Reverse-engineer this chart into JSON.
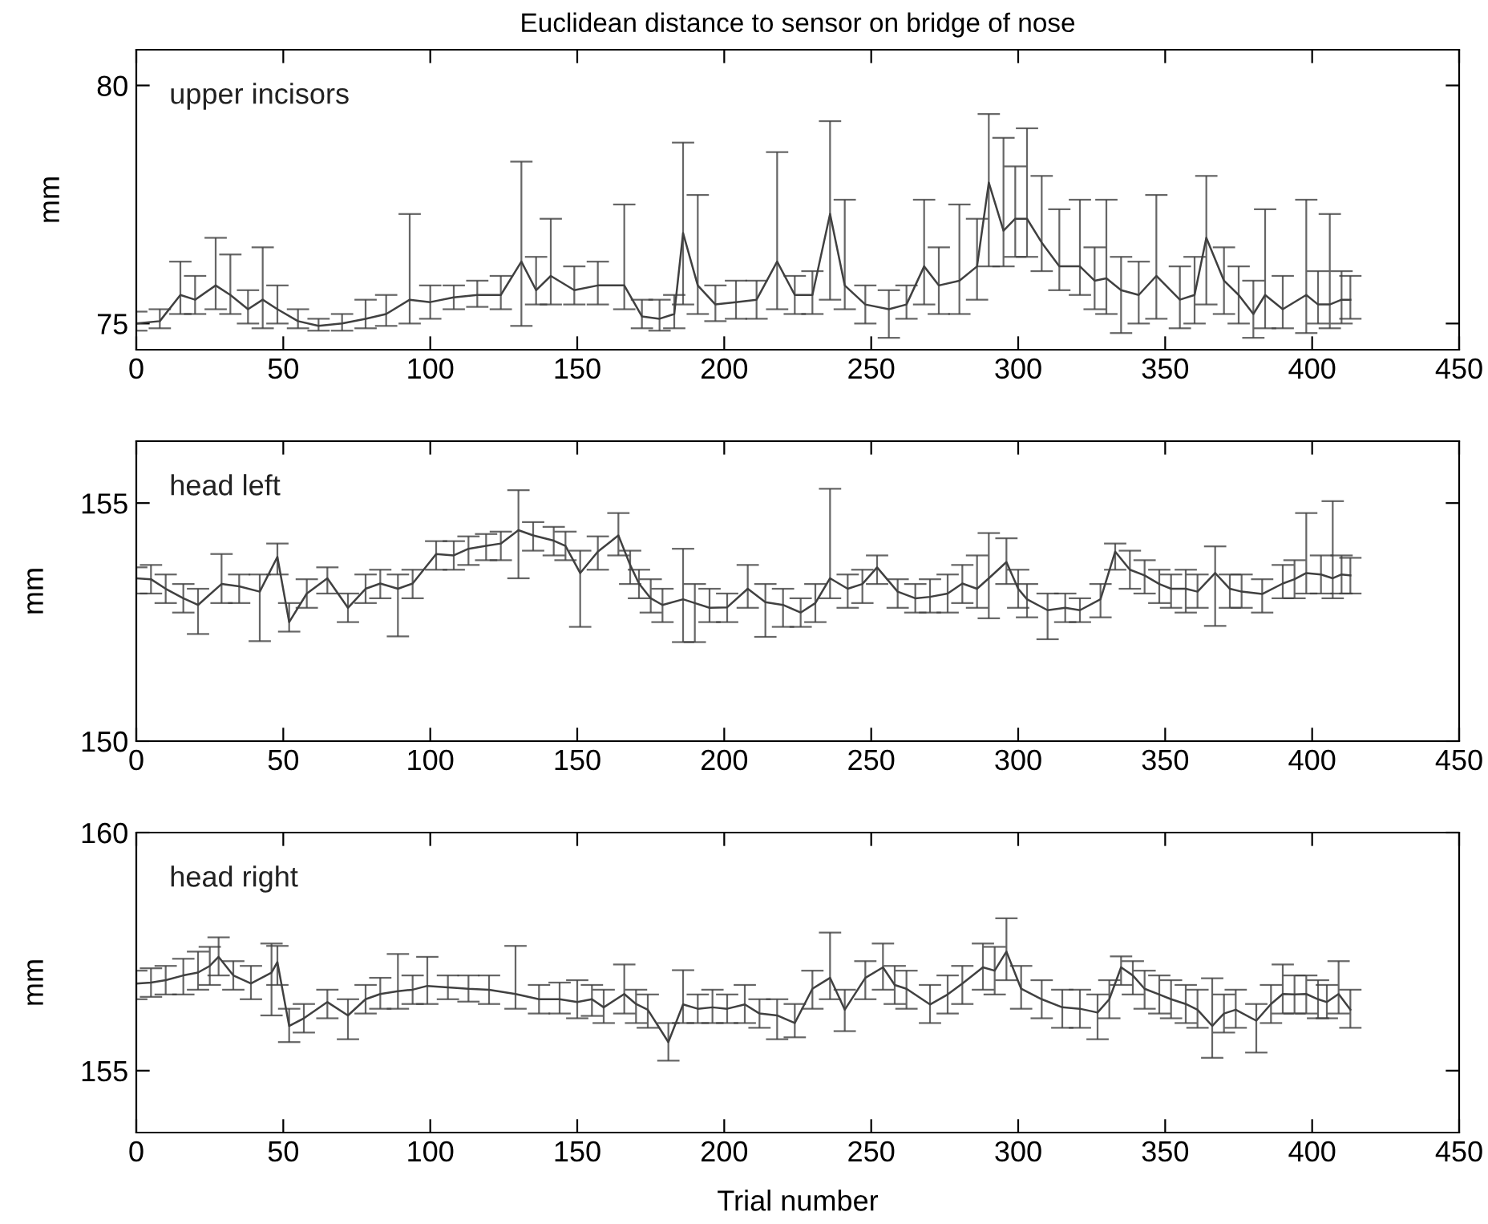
{
  "chart_data": [
    {
      "type": "line",
      "title": "Euclidean distance to sensor on bridge of nose",
      "ylabel": "mm",
      "annotations": [
        "upper incisors"
      ],
      "xlim": [
        0,
        450
      ],
      "ylim": [
        74.45,
        80.75
      ],
      "xticks": [
        0,
        50,
        100,
        150,
        200,
        250,
        300,
        350,
        400,
        450
      ],
      "yticks": [
        75,
        80
      ],
      "grid": false,
      "marker": "none",
      "line_style": "solid",
      "x": [
        0,
        8,
        15,
        20,
        27,
        32,
        38,
        43,
        48,
        55,
        62,
        70,
        78,
        85,
        93,
        100,
        108,
        116,
        124,
        131,
        136,
        141,
        149,
        157,
        166,
        172,
        178,
        183,
        186,
        191,
        197,
        204,
        211,
        218,
        224,
        230,
        236,
        241,
        248,
        256,
        262,
        268,
        273,
        280,
        286,
        290,
        295,
        299,
        303,
        308,
        314,
        321,
        326,
        330,
        335,
        341,
        347,
        355,
        360,
        364,
        370,
        375,
        380,
        384,
        390,
        398,
        402,
        406,
        410,
        413
      ],
      "series": [
        {
          "color": "#404040",
          "values": [
            75.0,
            75.05,
            75.6,
            75.5,
            75.8,
            75.6,
            75.3,
            75.5,
            75.3,
            75.05,
            74.95,
            75.0,
            75.1,
            75.2,
            75.5,
            75.45,
            75.55,
            75.6,
            75.6,
            76.3,
            75.7,
            76.0,
            75.7,
            75.8,
            75.8,
            75.15,
            75.1,
            75.2,
            76.9,
            75.8,
            75.4,
            75.45,
            75.5,
            76.3,
            75.6,
            75.6,
            77.3,
            75.8,
            75.4,
            75.3,
            75.4,
            76.2,
            75.8,
            75.9,
            76.2,
            77.96,
            76.95,
            77.2,
            77.2,
            76.7,
            76.2,
            76.2,
            75.9,
            75.95,
            75.7,
            75.6,
            76.0,
            75.5,
            75.6,
            76.8,
            75.9,
            75.6,
            75.2,
            75.6,
            75.3,
            75.6,
            75.4,
            75.4,
            75.5,
            75.5
          ],
          "errors": [
            [
              74.85,
              75.25
            ],
            [
              74.9,
              75.3
            ],
            [
              75.2,
              76.3
            ],
            [
              75.2,
              76.0
            ],
            [
              75.3,
              76.8
            ],
            [
              75.2,
              76.45
            ],
            [
              75.0,
              75.7
            ],
            [
              74.9,
              76.6
            ],
            [
              75.0,
              75.8
            ],
            [
              74.9,
              75.3
            ],
            [
              74.85,
              75.1
            ],
            [
              74.85,
              75.2
            ],
            [
              74.9,
              75.5
            ],
            [
              74.95,
              75.6
            ],
            [
              75.0,
              77.3
            ],
            [
              75.1,
              75.8
            ],
            [
              75.3,
              75.8
            ],
            [
              75.35,
              75.9
            ],
            [
              75.3,
              76.0
            ],
            [
              74.95,
              78.4
            ],
            [
              75.4,
              76.4
            ],
            [
              75.4,
              77.2
            ],
            [
              75.4,
              76.2
            ],
            [
              75.4,
              76.3
            ],
            [
              75.3,
              77.5
            ],
            [
              74.9,
              75.5
            ],
            [
              74.85,
              75.5
            ],
            [
              74.9,
              75.6
            ],
            [
              75.4,
              78.8
            ],
            [
              75.2,
              77.7
            ],
            [
              75.05,
              75.8
            ],
            [
              75.1,
              75.9
            ],
            [
              75.1,
              75.9
            ],
            [
              75.3,
              78.6
            ],
            [
              75.2,
              76.0
            ],
            [
              75.2,
              76.1
            ],
            [
              75.5,
              79.25
            ],
            [
              75.3,
              77.6
            ],
            [
              75.0,
              75.8
            ],
            [
              74.7,
              75.7
            ],
            [
              75.1,
              75.8
            ],
            [
              75.4,
              77.6
            ],
            [
              75.2,
              76.6
            ],
            [
              75.2,
              77.5
            ],
            [
              75.5,
              77.2
            ],
            [
              76.2,
              79.4
            ],
            [
              76.2,
              78.9
            ],
            [
              76.4,
              78.3
            ],
            [
              76.4,
              79.1
            ],
            [
              76.1,
              78.1
            ],
            [
              75.7,
              77.4
            ],
            [
              75.6,
              77.6
            ],
            [
              75.3,
              76.6
            ],
            [
              75.2,
              77.6
            ],
            [
              74.8,
              76.4
            ],
            [
              75.0,
              76.3
            ],
            [
              75.1,
              77.7
            ],
            [
              74.9,
              76.2
            ],
            [
              75.0,
              76.4
            ],
            [
              75.4,
              78.1
            ],
            [
              75.2,
              76.6
            ],
            [
              75.0,
              76.2
            ],
            [
              74.7,
              75.9
            ],
            [
              74.9,
              77.4
            ],
            [
              74.9,
              76.0
            ],
            [
              74.8,
              77.6
            ],
            [
              75.0,
              76.1
            ],
            [
              74.9,
              77.3
            ],
            [
              75.0,
              76.1
            ],
            [
              75.1,
              76.0
            ]
          ]
        }
      ]
    },
    {
      "type": "line",
      "ylabel": "mm",
      "annotations": [
        "head left"
      ],
      "xlim": [
        0,
        450
      ],
      "ylim": [
        150,
        156.3
      ],
      "xticks": [
        0,
        50,
        100,
        150,
        200,
        250,
        300,
        350,
        400,
        450
      ],
      "yticks": [
        150,
        155
      ],
      "grid": false,
      "marker": "none",
      "line_style": "solid",
      "x": [
        0,
        5,
        10,
        16,
        21,
        29,
        35,
        42,
        48,
        52,
        58,
        65,
        72,
        78,
        83,
        89,
        94,
        102,
        108,
        113,
        119,
        124,
        130,
        135,
        142,
        146,
        151,
        157,
        164,
        168,
        171,
        175,
        179,
        186,
        190,
        195,
        201,
        208,
        214,
        220,
        226,
        231,
        236,
        242,
        247,
        252,
        259,
        265,
        270,
        276,
        281,
        286,
        290,
        296,
        300,
        303,
        310,
        316,
        321,
        328,
        333,
        338,
        343,
        348,
        352,
        357,
        361,
        367,
        372,
        376,
        383,
        390,
        394,
        398,
        403,
        407,
        410,
        413
      ],
      "series": [
        {
          "color": "#404040",
          "values": [
            153.42,
            153.4,
            153.2,
            153.0,
            152.86,
            153.3,
            153.25,
            153.14,
            153.87,
            152.5,
            153.1,
            153.42,
            152.8,
            153.2,
            153.31,
            153.2,
            153.31,
            153.93,
            153.9,
            154.04,
            154.1,
            154.15,
            154.43,
            154.32,
            154.21,
            154.1,
            153.53,
            153.98,
            154.32,
            153.7,
            153.31,
            153.0,
            152.86,
            152.98,
            152.9,
            152.8,
            152.81,
            153.2,
            152.92,
            152.86,
            152.7,
            152.9,
            153.42,
            153.2,
            153.3,
            153.65,
            153.14,
            153.0,
            153.03,
            153.1,
            153.31,
            153.2,
            153.42,
            153.76,
            153.2,
            152.98,
            152.75,
            152.8,
            152.75,
            152.98,
            153.98,
            153.6,
            153.48,
            153.3,
            153.2,
            153.2,
            153.14,
            153.53,
            153.2,
            153.14,
            153.09,
            153.31,
            153.4,
            153.53,
            153.5,
            153.42,
            153.5,
            153.48
          ],
          "errors": [
            [
              153.1,
              153.65
            ],
            [
              153.1,
              153.7
            ],
            [
              152.9,
              153.5
            ],
            [
              152.7,
              153.3
            ],
            [
              152.25,
              153.2
            ],
            [
              152.9,
              153.93
            ],
            [
              152.9,
              153.5
            ],
            [
              152.1,
              153.5
            ],
            [
              153.5,
              154.15
            ],
            [
              152.3,
              152.9
            ],
            [
              152.8,
              153.4
            ],
            [
              153.1,
              153.65
            ],
            [
              152.5,
              153.1
            ],
            [
              152.9,
              153.5
            ],
            [
              153.0,
              153.6
            ],
            [
              152.2,
              153.5
            ],
            [
              153.0,
              153.6
            ],
            [
              153.6,
              154.2
            ],
            [
              153.6,
              154.2
            ],
            [
              153.7,
              154.3
            ],
            [
              153.8,
              154.35
            ],
            [
              153.8,
              154.4
            ],
            [
              153.42,
              155.27
            ],
            [
              154.0,
              154.6
            ],
            [
              153.9,
              154.5
            ],
            [
              153.8,
              154.4
            ],
            [
              152.4,
              154.0
            ],
            [
              153.6,
              154.3
            ],
            [
              153.9,
              154.79
            ],
            [
              153.3,
              154.0
            ],
            [
              153.0,
              153.6
            ],
            [
              152.7,
              153.4
            ],
            [
              152.5,
              153.2
            ],
            [
              152.08,
              154.04
            ],
            [
              152.08,
              153.3
            ],
            [
              152.5,
              153.2
            ],
            [
              152.5,
              153.1
            ],
            [
              152.8,
              153.7
            ],
            [
              152.19,
              153.3
            ],
            [
              152.4,
              153.2
            ],
            [
              152.4,
              153.0
            ],
            [
              152.5,
              153.3
            ],
            [
              153.0,
              155.3
            ],
            [
              152.8,
              153.5
            ],
            [
              152.9,
              153.6
            ],
            [
              153.3,
              153.9
            ],
            [
              152.8,
              153.4
            ],
            [
              152.7,
              153.3
            ],
            [
              152.7,
              153.4
            ],
            [
              152.7,
              153.5
            ],
            [
              152.9,
              153.7
            ],
            [
              152.8,
              153.9
            ],
            [
              152.58,
              154.37
            ],
            [
              153.3,
              154.26
            ],
            [
              152.8,
              153.6
            ],
            [
              152.6,
              153.3
            ],
            [
              152.14,
              153.1
            ],
            [
              152.5,
              153.1
            ],
            [
              152.5,
              153.0
            ],
            [
              152.6,
              153.3
            ],
            [
              153.6,
              154.15
            ],
            [
              153.2,
              154.0
            ],
            [
              153.1,
              153.8
            ],
            [
              152.9,
              153.6
            ],
            [
              152.8,
              153.5
            ],
            [
              152.7,
              153.6
            ],
            [
              152.8,
              153.5
            ],
            [
              152.42,
              154.09
            ],
            [
              152.8,
              153.5
            ],
            [
              152.8,
              153.5
            ],
            [
              152.7,
              153.4
            ],
            [
              153.0,
              153.7
            ],
            [
              153.0,
              153.8
            ],
            [
              153.1,
              154.79
            ],
            [
              153.1,
              153.9
            ],
            [
              153.0,
              155.04
            ],
            [
              153.1,
              153.9
            ],
            [
              153.1,
              153.85
            ]
          ]
        }
      ]
    },
    {
      "type": "line",
      "xlabel": "Trial number",
      "ylabel": "mm",
      "annotations": [
        "head right"
      ],
      "xlim": [
        0,
        450
      ],
      "ylim": [
        153.7,
        160
      ],
      "xticks": [
        0,
        50,
        100,
        150,
        200,
        250,
        300,
        350,
        400,
        450
      ],
      "yticks": [
        155,
        160
      ],
      "grid": false,
      "marker": "none",
      "line_style": "solid",
      "x": [
        0,
        5,
        10,
        16,
        21,
        25,
        28,
        33,
        39,
        46,
        48,
        52,
        57,
        65,
        72,
        78,
        83,
        89,
        94,
        99,
        106,
        113,
        120,
        129,
        137,
        144,
        150,
        155,
        159,
        166,
        170,
        174,
        181,
        186,
        191,
        196,
        201,
        207,
        212,
        218,
        224,
        230,
        236,
        241,
        248,
        254,
        258,
        262,
        270,
        276,
        281,
        288,
        292,
        296,
        301,
        308,
        315,
        321,
        327,
        331,
        335,
        339,
        343,
        348,
        352,
        357,
        361,
        366,
        370,
        374,
        381,
        386,
        390,
        394,
        398,
        402,
        405,
        409,
        413
      ],
      "series": [
        {
          "color": "#404040",
          "values": [
            156.83,
            156.85,
            156.9,
            157.0,
            157.06,
            157.2,
            157.39,
            157.0,
            156.83,
            157.06,
            157.28,
            155.94,
            156.1,
            156.44,
            156.16,
            156.5,
            156.61,
            156.67,
            156.7,
            156.78,
            156.75,
            156.72,
            156.7,
            156.61,
            156.5,
            156.5,
            156.44,
            156.5,
            156.33,
            156.61,
            156.4,
            156.28,
            155.6,
            156.39,
            156.3,
            156.33,
            156.3,
            156.39,
            156.2,
            156.16,
            156.0,
            156.72,
            156.95,
            156.28,
            156.95,
            157.17,
            156.8,
            156.72,
            156.39,
            156.6,
            156.83,
            157.17,
            157.1,
            157.5,
            156.72,
            156.5,
            156.33,
            156.3,
            156.22,
            156.5,
            157.17,
            157.0,
            156.72,
            156.6,
            156.5,
            156.4,
            156.28,
            155.94,
            156.2,
            156.28,
            156.05,
            156.4,
            156.61,
            156.6,
            156.61,
            156.5,
            156.44,
            156.61,
            156.28
          ],
          "errors": [
            [
              156.5,
              157.1
            ],
            [
              156.55,
              157.15
            ],
            [
              156.6,
              157.2
            ],
            [
              156.6,
              157.35
            ],
            [
              156.7,
              157.5
            ],
            [
              156.8,
              157.6
            ],
            [
              157.0,
              157.8
            ],
            [
              156.7,
              157.3
            ],
            [
              156.5,
              157.2
            ],
            [
              156.16,
              157.67
            ],
            [
              156.8,
              157.62
            ],
            [
              155.6,
              156.3
            ],
            [
              155.8,
              156.4
            ],
            [
              156.1,
              156.7
            ],
            [
              155.66,
              156.5
            ],
            [
              156.2,
              156.8
            ],
            [
              156.3,
              156.95
            ],
            [
              156.3,
              157.45
            ],
            [
              156.4,
              157.0
            ],
            [
              156.4,
              157.39
            ],
            [
              156.5,
              157.0
            ],
            [
              156.45,
              157.0
            ],
            [
              156.4,
              157.0
            ],
            [
              156.3,
              157.62
            ],
            [
              156.2,
              156.8
            ],
            [
              156.2,
              156.85
            ],
            [
              156.1,
              156.9
            ],
            [
              156.15,
              156.8
            ],
            [
              156.0,
              156.7
            ],
            [
              156.2,
              157.23
            ],
            [
              156.0,
              156.7
            ],
            [
              155.9,
              156.6
            ],
            [
              155.21,
              156.0
            ],
            [
              156.0,
              157.11
            ],
            [
              156.0,
              156.6
            ],
            [
              156.0,
              156.7
            ],
            [
              156.0,
              156.6
            ],
            [
              156.0,
              156.8
            ],
            [
              155.9,
              156.5
            ],
            [
              155.66,
              156.5
            ],
            [
              155.7,
              156.4
            ],
            [
              156.3,
              157.1
            ],
            [
              156.5,
              157.9
            ],
            [
              155.83,
              156.7
            ],
            [
              156.5,
              157.3
            ],
            [
              156.7,
              157.67
            ],
            [
              156.4,
              157.2
            ],
            [
              156.3,
              157.1
            ],
            [
              156.0,
              156.8
            ],
            [
              156.2,
              157.0
            ],
            [
              156.4,
              157.2
            ],
            [
              156.7,
              157.67
            ],
            [
              156.6,
              157.6
            ],
            [
              156.9,
              158.2
            ],
            [
              156.3,
              157.2
            ],
            [
              156.1,
              156.9
            ],
            [
              155.9,
              156.7
            ],
            [
              155.9,
              156.7
            ],
            [
              155.66,
              156.6
            ],
            [
              156.1,
              156.9
            ],
            [
              156.8,
              157.4
            ],
            [
              156.6,
              157.3
            ],
            [
              156.3,
              157.1
            ],
            [
              156.2,
              157.0
            ],
            [
              156.1,
              156.9
            ],
            [
              156.0,
              156.8
            ],
            [
              155.9,
              156.7
            ],
            [
              155.27,
              156.94
            ],
            [
              155.8,
              156.6
            ],
            [
              155.9,
              156.7
            ],
            [
              155.38,
              156.4
            ],
            [
              156.0,
              156.8
            ],
            [
              156.2,
              157.23
            ],
            [
              156.2,
              157.0
            ],
            [
              156.2,
              157.0
            ],
            [
              156.1,
              156.9
            ],
            [
              156.1,
              156.8
            ],
            [
              156.2,
              157.3
            ],
            [
              155.9,
              156.7
            ]
          ]
        }
      ]
    }
  ]
}
